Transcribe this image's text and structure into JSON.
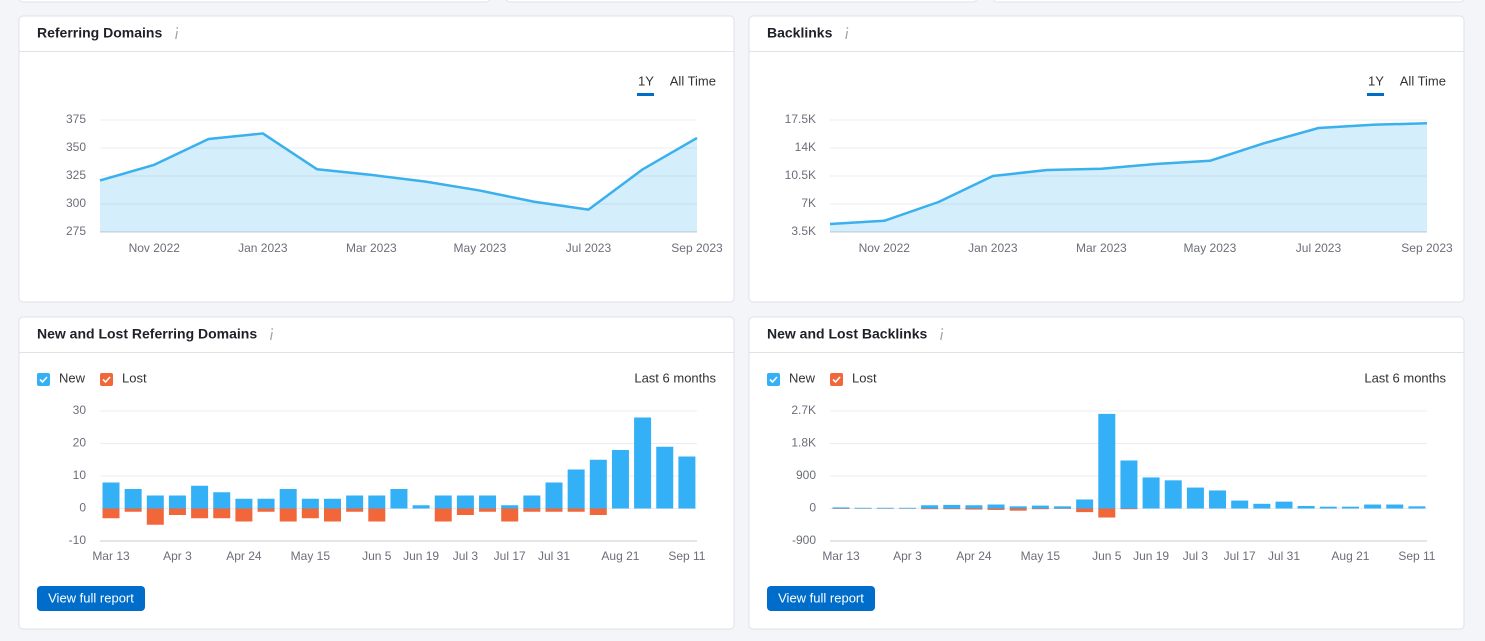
{
  "chart_data": [
    {
      "type": "area",
      "title": "Referring Domains",
      "controls": [
        "1Y",
        "All Time"
      ],
      "categories": [
        null,
        "Nov 2022",
        null,
        "Jan 2023",
        null,
        "Mar 2023",
        null,
        "May 2023",
        null,
        "Jul 2023",
        null,
        "Sep 2023"
      ],
      "values": [
        321,
        335,
        358,
        363,
        331,
        326,
        320,
        312,
        302,
        295,
        331,
        359
      ],
      "color": "#3ab0ec",
      "ylim": [
        275,
        375
      ],
      "yticks": [
        275,
        300,
        325,
        350,
        375
      ],
      "grid": true
    },
    {
      "type": "area",
      "title": "Backlinks",
      "controls": [
        "1Y",
        "All Time"
      ],
      "categories": [
        null,
        "Nov 2022",
        null,
        "Jan 2023",
        null,
        "Mar 2023",
        null,
        "May 2023",
        null,
        "Jul 2023",
        null,
        "Sep 2023"
      ],
      "values": [
        4500,
        4900,
        7250,
        10500,
        11250,
        11400,
        12000,
        12400,
        14600,
        16500,
        16900,
        17100
      ],
      "color": "#3ab0ec",
      "ylim": [
        3500,
        17500
      ],
      "yticks": [
        {
          "value": 3500,
          "label": "3.5K"
        },
        {
          "value": 7000,
          "label": "7K"
        },
        {
          "value": 10500,
          "label": "10.5K"
        },
        {
          "value": 14000,
          "label": "14K"
        },
        {
          "value": 17500,
          "label": "17.5K"
        }
      ],
      "grid": true
    },
    {
      "type": "bar",
      "title": "New and Lost Referring Domains",
      "period": "Last 6 months",
      "button": "View full report",
      "categories": [
        "Mar 13",
        null,
        null,
        "Apr 3",
        null,
        null,
        "Apr 24",
        null,
        null,
        "May 15",
        null,
        null,
        "Jun 5",
        null,
        "Jun 19",
        null,
        "Jul 3",
        null,
        "Jul 17",
        null,
        "Jul 31",
        null,
        null,
        "Aug 21",
        null,
        null,
        "Sep 11"
      ],
      "series": [
        {
          "name": "New",
          "color": "#33b0f6",
          "values": [
            8,
            6,
            4,
            4,
            7,
            5,
            3,
            3,
            6,
            3,
            3,
            4,
            4,
            6,
            1,
            4,
            4,
            4,
            1,
            4,
            8,
            12,
            15,
            18,
            28,
            19,
            16
          ]
        },
        {
          "name": "Lost",
          "color": "#f2673a",
          "values": [
            -3,
            -1,
            -5,
            -2,
            -3,
            -3,
            -4,
            -1,
            -4,
            -3,
            -4,
            -1,
            -4,
            0,
            0,
            -4,
            -2,
            -1,
            -4,
            -1,
            -1,
            -1,
            -2,
            0,
            0,
            0,
            0
          ]
        }
      ],
      "ylim": [
        -10,
        30
      ],
      "yticks": [
        -10,
        0,
        10,
        20,
        30
      ],
      "grid": true
    },
    {
      "type": "bar",
      "title": "New and Lost Backlinks",
      "period": "Last 6 months",
      "button": "View full report",
      "categories": [
        "Mar 13",
        null,
        null,
        "Apr 3",
        null,
        null,
        "Apr 24",
        null,
        null,
        "May 15",
        null,
        null,
        "Jun 5",
        null,
        "Jun 19",
        null,
        "Jul 3",
        null,
        "Jul 17",
        null,
        "Jul 31",
        null,
        null,
        "Aug 21",
        null,
        null,
        "Sep 11"
      ],
      "series": [
        {
          "name": "New",
          "color": "#33b0f6",
          "values": [
            30,
            20,
            20,
            20,
            90,
            100,
            90,
            110,
            60,
            80,
            60,
            250,
            2620,
            1330,
            860,
            780,
            580,
            500,
            220,
            130,
            190,
            70,
            50,
            50,
            110,
            110,
            60
          ]
        },
        {
          "name": "Lost",
          "color": "#f2673a",
          "values": [
            -10,
            -5,
            -5,
            -5,
            -20,
            -20,
            -30,
            -40,
            -60,
            -20,
            -10,
            -100,
            -250,
            -20,
            0,
            0,
            0,
            0,
            0,
            0,
            0,
            0,
            0,
            0,
            0,
            0,
            0
          ]
        }
      ],
      "ylim": [
        -900,
        2700
      ],
      "yticks": [
        -900,
        0,
        900,
        {
          "value": 1800,
          "label": "1.8K"
        },
        {
          "value": 2700,
          "label": "2.7K"
        }
      ],
      "grid": true
    }
  ]
}
